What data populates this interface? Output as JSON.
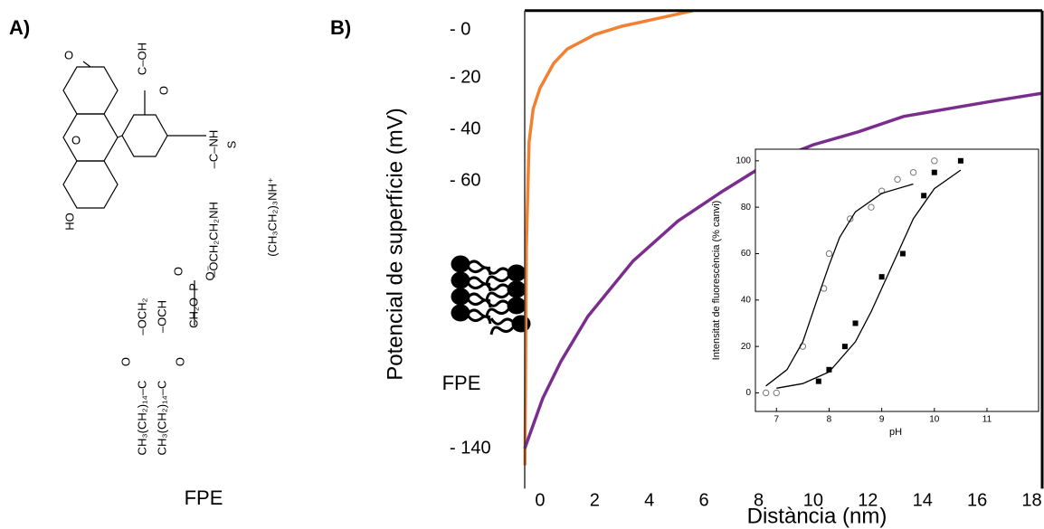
{
  "panel_a": {
    "label": "A)",
    "caption": "FPE",
    "structure_labels": [
      "O",
      "HO",
      "O",
      "C–OH",
      "O",
      "–C–NH",
      "S",
      "–OCH₂CH₂NH",
      "CH₂O–P",
      "O",
      "O⁻",
      "–OCH₂",
      "–OCH",
      "O",
      "O",
      "CH₃(CH₂)₁₄–C",
      "CH₃(CH₂)₁₄–C",
      "(CH₃CH₂)₃NH⁺"
    ]
  },
  "chart_data": [
    {
      "type": "line",
      "panel_label": "B)",
      "ylabel": "Potencial de superfície (mV)",
      "xlabel": "Distància (nm)",
      "annotation": "FPE",
      "xlim": [
        -0.56,
        18.38
      ],
      "xticks": [
        0,
        2,
        4,
        6,
        8,
        10,
        12,
        14,
        16,
        18
      ],
      "ylim": [
        -152,
        8
      ],
      "yticks": [
        {
          "value": 0,
          "label": "- 0"
        },
        {
          "value": -20,
          "label": "- 20"
        },
        {
          "value": -40,
          "label": "- 40"
        },
        {
          "value": -60,
          "label": "- 60"
        },
        {
          "value": -140,
          "label": "- 140"
        }
      ],
      "series": [
        {
          "color": "#f28032",
          "x": [
            -0.55,
            -0.5,
            -0.4,
            -0.25,
            0,
            0.5,
            1,
            2,
            3,
            4,
            5,
            5.6
          ],
          "values": [
            -145,
            -80,
            -45,
            -32,
            -24,
            -14,
            -8,
            -2,
            1.5,
            4,
            6.5,
            8
          ]
        },
        {
          "color": "#7b2d8e",
          "x": [
            -0.56,
            0.1,
            0.76,
            1.75,
            3.4,
            5.05,
            6.7,
            8.35,
            10,
            11.65,
            13.3,
            14.95,
            16.6,
            18.38
          ],
          "values": [
            -140,
            -125,
            -114,
            -100.5,
            -84,
            -72,
            -63,
            -53,
            -46,
            -41,
            -35,
            -32,
            -29,
            -26
          ]
        }
      ]
    },
    {
      "type": "scatter",
      "ylabel": "Intensitat de fluorescència (% canvi)",
      "xlabel": "pH",
      "xlim": [
        6.6,
        11.98
      ],
      "xticks": [
        7,
        8,
        9,
        10,
        11
      ],
      "ylim": [
        -8,
        105
      ],
      "yticks": [
        0,
        20,
        40,
        60,
        80,
        100
      ],
      "series": [
        {
          "marker": "circle-open",
          "color": "#777777",
          "x": [
            6.8,
            7,
            7.5,
            7.9,
            8,
            8.4,
            8.8,
            9,
            9.3,
            9.6,
            10
          ],
          "values": [
            0,
            0,
            20,
            45,
            60,
            75,
            80,
            87,
            92,
            95,
            100
          ]
        },
        {
          "marker": "square",
          "color": "#000000",
          "x": [
            7.8,
            8,
            8.3,
            8.5,
            9,
            9.4,
            9.8,
            10,
            10.5
          ],
          "values": [
            5,
            10,
            20,
            30,
            50,
            60,
            85,
            95,
            100
          ]
        },
        {
          "marker": "line",
          "color": "#000000",
          "x": [
            6.8,
            7.2,
            7.5,
            7.8,
            8,
            8.2,
            8.5,
            9,
            9.6
          ],
          "values": [
            3,
            10,
            22,
            42,
            55,
            67,
            78,
            86,
            90
          ]
        },
        {
          "marker": "line",
          "color": "#000000",
          "x": [
            7,
            7.5,
            8,
            8.5,
            8.8,
            9,
            9.3,
            9.6,
            10,
            10.5
          ],
          "values": [
            2,
            4,
            9,
            22,
            35,
            45,
            60,
            75,
            88,
            96
          ]
        }
      ]
    }
  ]
}
